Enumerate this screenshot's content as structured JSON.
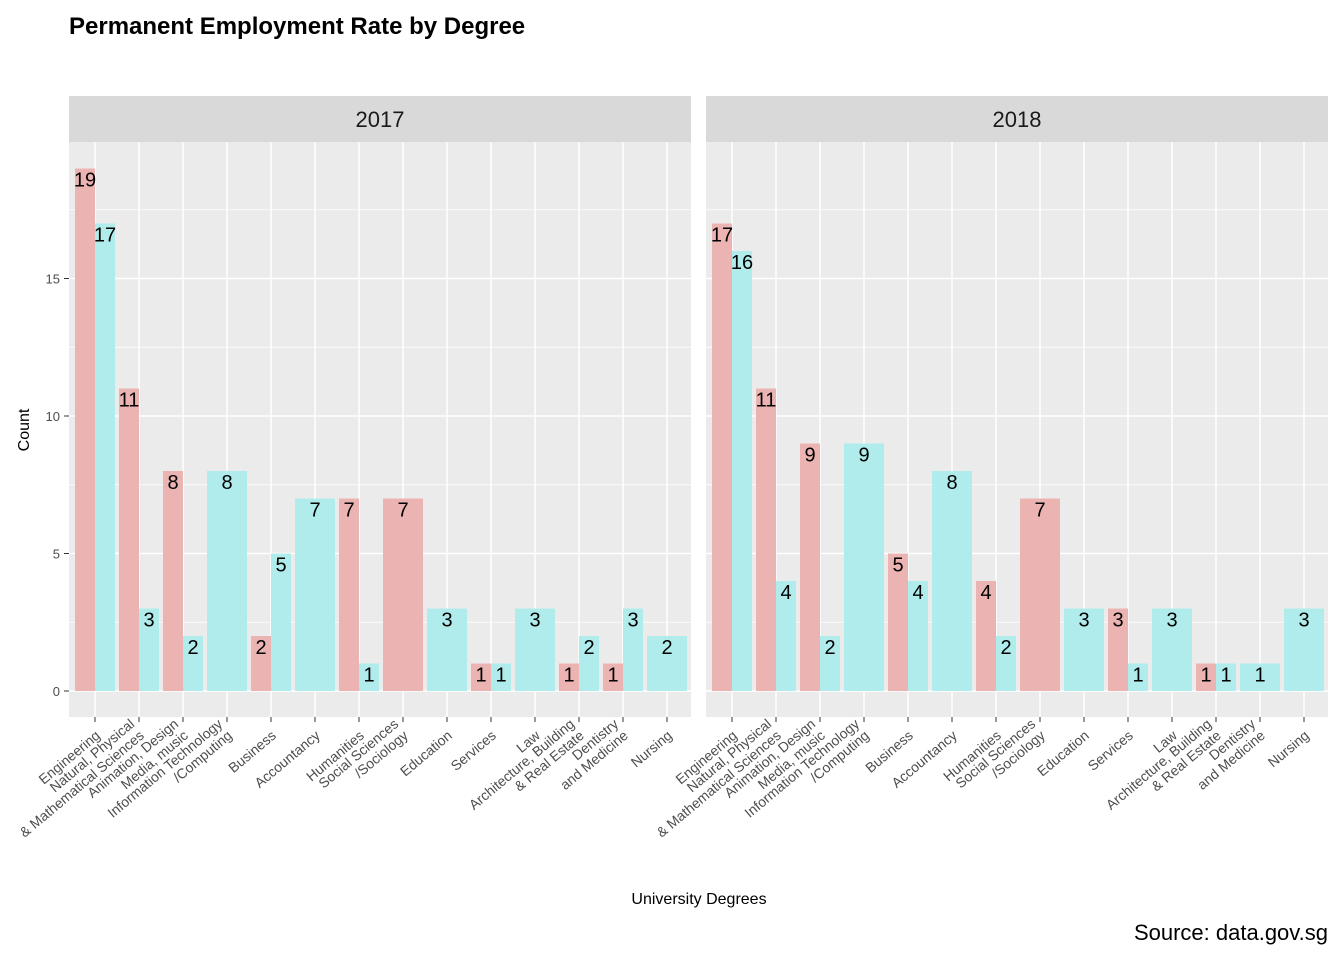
{
  "chart_data": {
    "type": "bar",
    "title": "Permanent Employment Rate by Degree",
    "xlabel": "University Degrees",
    "ylabel": "Count",
    "caption": "Source: data.gov.sg",
    "ylim": [
      0,
      19
    ],
    "y_ticks": [
      0,
      5,
      10,
      15
    ],
    "grid": true,
    "legend": "none",
    "colors": {
      "pink": "#ebb4b2",
      "cyan": "#b0ecec",
      "panel_bg": "#ebebeb",
      "strip_bg": "#d9d9d9",
      "grid": "#ffffff"
    },
    "categories": [
      [
        "Engineering"
      ],
      [
        "Natural, Physical",
        "& Mathematical Sciences"
      ],
      [
        "Animation, Design",
        "Media, music"
      ],
      [
        "Information Technology",
        "/Computing"
      ],
      [
        "Business"
      ],
      [
        "Accountancy"
      ],
      [
        "Humanities"
      ],
      [
        "Social Sciences",
        "/Sociology"
      ],
      [
        "Education"
      ],
      [
        "Services"
      ],
      [
        "Law"
      ],
      [
        "Architecture, Building",
        "& Real Estate"
      ],
      [
        "Dentistry",
        "and Medicine"
      ],
      [
        "Nursing"
      ]
    ],
    "panels": [
      {
        "label": "2017",
        "bars": [
          {
            "category": 0,
            "value": 19,
            "color": "pink",
            "slot": "left"
          },
          {
            "category": 0,
            "value": 17,
            "color": "cyan",
            "slot": "right"
          },
          {
            "category": 1,
            "value": 11,
            "color": "pink",
            "slot": "left"
          },
          {
            "category": 1,
            "value": 3,
            "color": "cyan",
            "slot": "right"
          },
          {
            "category": 2,
            "value": 8,
            "color": "pink",
            "slot": "left"
          },
          {
            "category": 2,
            "value": 2,
            "color": "cyan",
            "slot": "right"
          },
          {
            "category": 3,
            "value": 8,
            "color": "cyan",
            "slot": "full"
          },
          {
            "category": 4,
            "value": 2,
            "color": "pink",
            "slot": "left"
          },
          {
            "category": 4,
            "value": 5,
            "color": "cyan",
            "slot": "right"
          },
          {
            "category": 5,
            "value": 7,
            "color": "cyan",
            "slot": "full"
          },
          {
            "category": 6,
            "value": 7,
            "color": "pink",
            "slot": "left"
          },
          {
            "category": 6,
            "value": 1,
            "color": "cyan",
            "slot": "right"
          },
          {
            "category": 7,
            "value": 7,
            "color": "pink",
            "slot": "full"
          },
          {
            "category": 8,
            "value": 3,
            "color": "cyan",
            "slot": "full"
          },
          {
            "category": 9,
            "value": 1,
            "color": "pink",
            "slot": "left"
          },
          {
            "category": 9,
            "value": 1,
            "color": "cyan",
            "slot": "right"
          },
          {
            "category": 10,
            "value": 3,
            "color": "cyan",
            "slot": "full"
          },
          {
            "category": 11,
            "value": 1,
            "color": "pink",
            "slot": "left"
          },
          {
            "category": 11,
            "value": 2,
            "color": "cyan",
            "slot": "right"
          },
          {
            "category": 12,
            "value": 1,
            "color": "pink",
            "slot": "left"
          },
          {
            "category": 12,
            "value": 3,
            "color": "cyan",
            "slot": "right"
          },
          {
            "category": 13,
            "value": 2,
            "color": "cyan",
            "slot": "full"
          }
        ]
      },
      {
        "label": "2018",
        "bars": [
          {
            "category": 0,
            "value": 17,
            "color": "pink",
            "slot": "left"
          },
          {
            "category": 0,
            "value": 16,
            "color": "cyan",
            "slot": "right"
          },
          {
            "category": 1,
            "value": 11,
            "color": "pink",
            "slot": "left"
          },
          {
            "category": 1,
            "value": 4,
            "color": "cyan",
            "slot": "right"
          },
          {
            "category": 2,
            "value": 9,
            "color": "pink",
            "slot": "left"
          },
          {
            "category": 2,
            "value": 2,
            "color": "cyan",
            "slot": "right"
          },
          {
            "category": 3,
            "value": 9,
            "color": "cyan",
            "slot": "full"
          },
          {
            "category": 4,
            "value": 5,
            "color": "pink",
            "slot": "left"
          },
          {
            "category": 4,
            "value": 4,
            "color": "cyan",
            "slot": "right"
          },
          {
            "category": 5,
            "value": 8,
            "color": "cyan",
            "slot": "full"
          },
          {
            "category": 6,
            "value": 4,
            "color": "pink",
            "slot": "left"
          },
          {
            "category": 6,
            "value": 2,
            "color": "cyan",
            "slot": "right"
          },
          {
            "category": 7,
            "value": 7,
            "color": "pink",
            "slot": "full"
          },
          {
            "category": 8,
            "value": 3,
            "color": "cyan",
            "slot": "full"
          },
          {
            "category": 9,
            "value": 3,
            "color": "pink",
            "slot": "left"
          },
          {
            "category": 9,
            "value": 1,
            "color": "cyan",
            "slot": "right"
          },
          {
            "category": 10,
            "value": 3,
            "color": "cyan",
            "slot": "full"
          },
          {
            "category": 11,
            "value": 1,
            "color": "pink",
            "slot": "left"
          },
          {
            "category": 11,
            "value": 1,
            "color": "cyan",
            "slot": "right"
          },
          {
            "category": 12,
            "value": 1,
            "color": "cyan",
            "slot": "full"
          },
          {
            "category": 13,
            "value": 3,
            "color": "cyan",
            "slot": "full"
          }
        ]
      }
    ]
  }
}
